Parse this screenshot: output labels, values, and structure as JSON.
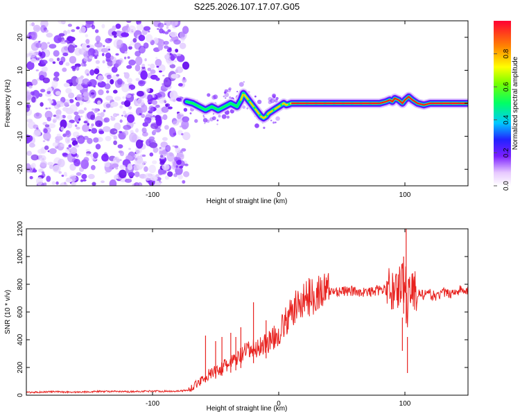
{
  "title": "S225.2026.107.17.07.G05",
  "colors": {
    "snr_line": "#e8221f",
    "axis": "#000000",
    "noise": "#8a2be2"
  },
  "chart_data": [
    {
      "type": "heatmap",
      "name": "spectrogram",
      "xlabel": "Height of straight line (km)",
      "ylabel": "Frequency (Hz)",
      "xlim": [
        -200,
        150
      ],
      "ylim": [
        -25,
        25
      ],
      "xticks": [
        -100,
        0,
        100
      ],
      "yticks": [
        -20,
        -10,
        0,
        10,
        20
      ],
      "xtick_labels": [
        "-100",
        "0",
        "100"
      ],
      "ytick_labels": [
        "-20",
        "-10",
        "0",
        "10",
        "20"
      ],
      "noise_region_x": [
        -200,
        -73
      ],
      "signal_start_x": -73,
      "ridge": {
        "x": [
          -73,
          -68,
          -63,
          -58,
          -53,
          -48,
          -43,
          -38,
          -33,
          -30,
          -28,
          -26,
          -24,
          -22,
          -20,
          -18,
          -16,
          -14,
          -12,
          -10,
          -8,
          -6,
          -4,
          -2,
          0,
          2,
          4,
          6,
          8,
          10,
          12,
          15,
          20,
          30,
          40,
          50,
          60,
          70,
          80,
          85,
          88,
          90,
          92,
          95,
          98,
          100,
          103,
          106,
          110,
          115,
          120,
          130,
          140,
          150
        ],
        "y": [
          0.5,
          0,
          -1,
          -2,
          -1,
          -2,
          -1,
          0,
          -1,
          1,
          3,
          2,
          1,
          0,
          -1,
          -2,
          -3,
          -4,
          -4.5,
          -4,
          -3,
          -2.5,
          -2,
          -1.5,
          -1,
          -0.5,
          0,
          -0.5,
          -0.3,
          0,
          0,
          0,
          0,
          0,
          0,
          0,
          0,
          0,
          0,
          0.5,
          1,
          0.5,
          1.5,
          1,
          0,
          1,
          2,
          1,
          0,
          -0.5,
          0,
          0,
          0,
          0
        ]
      },
      "colorbar": {
        "label": "Normalized spectral amplitude",
        "range": [
          0,
          1
        ],
        "ticks": [
          0,
          0.2,
          0.4,
          0.6,
          0.8
        ],
        "tick_labels": [
          "0.0",
          "0.2",
          "0.4",
          "0.6",
          "0.8"
        ]
      }
    },
    {
      "type": "line",
      "name": "snr",
      "xlabel": "Height of straight line (km)",
      "ylabel": "SNR (10 * v/v)",
      "xlim": [
        -200,
        150
      ],
      "ylim": [
        0,
        1200
      ],
      "xticks": [
        -100,
        0,
        100
      ],
      "yticks": [
        0,
        200,
        400,
        600,
        800,
        1000,
        1200
      ],
      "xtick_labels": [
        "-100",
        "0",
        "100"
      ],
      "ytick_labels": [
        "0",
        "200",
        "400",
        "600",
        "800",
        "1000",
        "1200"
      ],
      "series": [
        {
          "name": "SNR",
          "x": [
            -200,
            -180,
            -160,
            -140,
            -120,
            -100,
            -90,
            -80,
            -72,
            -65,
            -60,
            -55,
            -50,
            -45,
            -40,
            -35,
            -30,
            -25,
            -20,
            -15,
            -10,
            -5,
            0,
            5,
            10,
            15,
            20,
            25,
            30,
            35,
            40,
            50,
            60,
            70,
            80,
            90,
            95,
            98,
            100,
            102,
            103,
            105,
            110,
            115,
            120,
            125,
            130,
            135,
            140,
            145,
            150
          ],
          "values": [
            20,
            25,
            22,
            28,
            25,
            30,
            28,
            30,
            35,
            80,
            120,
            150,
            170,
            200,
            220,
            250,
            280,
            320,
            330,
            350,
            380,
            400,
            450,
            520,
            590,
            650,
            690,
            710,
            740,
            740,
            750,
            750,
            750,
            740,
            760,
            760,
            780,
            800,
            880,
            600,
            780,
            760,
            740,
            720,
            730,
            710,
            740,
            730,
            750,
            760,
            740
          ],
          "spikes": [
            {
              "x": -58,
              "value": 430
            },
            {
              "x": -50,
              "value": 390
            },
            {
              "x": -45,
              "value": 420
            },
            {
              "x": -38,
              "value": 450
            },
            {
              "x": -34,
              "value": 420
            },
            {
              "x": -30,
              "value": 490
            },
            {
              "x": -20,
              "value": 670
            },
            {
              "x": -10,
              "value": 540
            },
            {
              "x": 99,
              "value": 1000
            },
            {
              "x": 101,
              "value": 1200
            },
            {
              "x": 102,
              "value": 160
            },
            {
              "x": 98,
              "value": 320
            }
          ]
        }
      ]
    }
  ]
}
